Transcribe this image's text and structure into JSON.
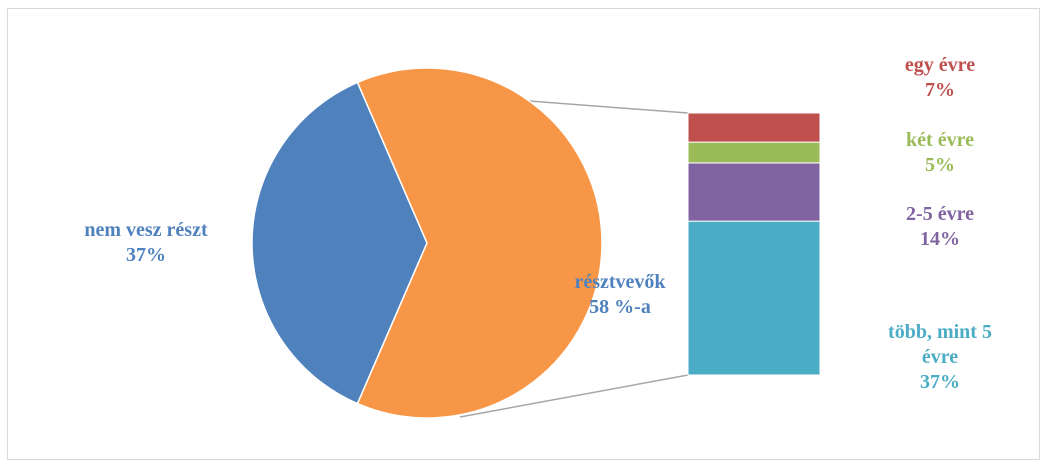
{
  "chart_data": {
    "type": "bar-of-pie",
    "colors": {
      "nem_vesz_reszt": "#4F81BD",
      "resztvevok": "#F79646",
      "egy_evre": "#C0504D",
      "ket_evre": "#9BBB59",
      "2_5_evre": "#8064A2",
      "tobb_mint_5": "#4BACC6",
      "connector": "#a6a6a6"
    },
    "pie": {
      "slices": [
        {
          "key": "nem_vesz_reszt",
          "value": 37,
          "label_lines": [
            "nem vesz részt",
            "37%"
          ]
        },
        {
          "key": "resztvevok",
          "value": 63,
          "label_lines": [
            "résztvevők",
            "58 %-a"
          ]
        }
      ]
    },
    "bar": {
      "segments": [
        {
          "key": "tobb_mint_5",
          "value": 37,
          "label_lines": [
            "több, mint 5",
            "évre",
            "37%"
          ]
        },
        {
          "key": "2_5_evre",
          "value": 14,
          "label_lines": [
            "2-5 évre",
            "14%"
          ]
        },
        {
          "key": "ket_evre",
          "value": 5,
          "label_lines": [
            "két évre",
            "5%"
          ]
        },
        {
          "key": "egy_evre",
          "value": 7,
          "label_lines": [
            "egy évre",
            "7%"
          ]
        }
      ]
    }
  }
}
